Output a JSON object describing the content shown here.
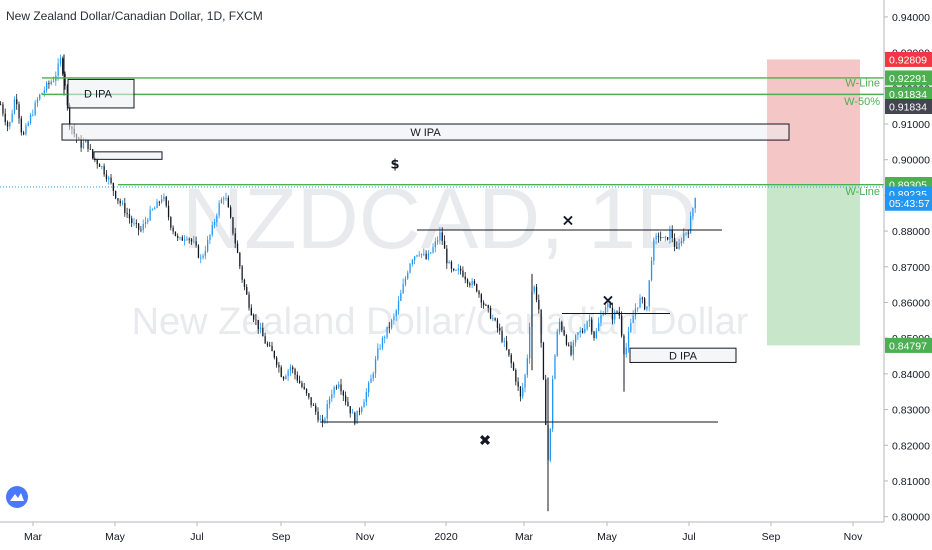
{
  "header": {
    "title": "New Zealand Dollar/Canadian Dollar, 1D, FXCM"
  },
  "watermark": {
    "symbol": "NZDCAD, 1D",
    "name": "New Zealand Dollar/Canadian Dollar"
  },
  "colors": {
    "up": "#2196f3",
    "down": "#131722",
    "green_line": "#4caf50",
    "red_tag": "#f23645",
    "target_zone": "#c8e6c9",
    "stop_zone": "#f5c6c6",
    "current_tag": "#2196f3",
    "dark_tag": "#434651"
  },
  "chart_data": {
    "type": "candlestick",
    "x_ticks": [
      "Mar",
      "May",
      "Jul",
      "Sep",
      "Nov",
      "2020",
      "Mar",
      "May",
      "Jul",
      "Sep",
      "Nov"
    ],
    "y_ticks": [
      "0.94000",
      "0.93000",
      "0.92000",
      "0.91000",
      "0.90000",
      "0.89000",
      "0.88000",
      "0.87000",
      "0.86000",
      "0.85000",
      "0.84000",
      "0.83000",
      "0.82000",
      "0.81000",
      "0.80000"
    ],
    "ylim": [
      0.7985,
      0.9425
    ],
    "price_path": [
      [
        0,
        0.9155
      ],
      [
        8,
        0.9085
      ],
      [
        15,
        0.9185
      ],
      [
        22,
        0.906
      ],
      [
        30,
        0.912
      ],
      [
        38,
        0.9175
      ],
      [
        46,
        0.9205
      ],
      [
        54,
        0.923
      ],
      [
        60,
        0.928
      ],
      [
        64,
        0.9225
      ],
      [
        68,
        0.911
      ],
      [
        74,
        0.907
      ],
      [
        80,
        0.904
      ],
      [
        86,
        0.905
      ],
      [
        92,
        0.9005
      ],
      [
        100,
        0.8985
      ],
      [
        108,
        0.8945
      ],
      [
        116,
        0.8895
      ],
      [
        124,
        0.886
      ],
      [
        132,
        0.882
      ],
      [
        140,
        0.88
      ],
      [
        148,
        0.8845
      ],
      [
        156,
        0.887
      ],
      [
        162,
        0.89
      ],
      [
        170,
        0.882
      ],
      [
        178,
        0.877
      ],
      [
        186,
        0.879
      ],
      [
        194,
        0.876
      ],
      [
        200,
        0.872
      ],
      [
        206,
        0.876
      ],
      [
        212,
        0.881
      ],
      [
        218,
        0.887
      ],
      [
        224,
        0.8905
      ],
      [
        230,
        0.883
      ],
      [
        236,
        0.875
      ],
      [
        242,
        0.866
      ],
      [
        250,
        0.858
      ],
      [
        258,
        0.853
      ],
      [
        266,
        0.848
      ],
      [
        274,
        0.845
      ],
      [
        282,
        0.839
      ],
      [
        290,
        0.842
      ],
      [
        298,
        0.838
      ],
      [
        306,
        0.834
      ],
      [
        314,
        0.83
      ],
      [
        322,
        0.8255
      ],
      [
        330,
        0.8345
      ],
      [
        338,
        0.838
      ],
      [
        346,
        0.832
      ],
      [
        354,
        0.827
      ],
      [
        362,
        0.832
      ],
      [
        370,
        0.838
      ],
      [
        378,
        0.847
      ],
      [
        386,
        0.852
      ],
      [
        394,
        0.856
      ],
      [
        402,
        0.864
      ],
      [
        410,
        0.872
      ],
      [
        418,
        0.8745
      ],
      [
        426,
        0.872
      ],
      [
        434,
        0.876
      ],
      [
        440,
        0.8795
      ],
      [
        446,
        0.872
      ],
      [
        452,
        0.868
      ],
      [
        460,
        0.869
      ],
      [
        468,
        0.866
      ],
      [
        476,
        0.864
      ],
      [
        484,
        0.859
      ],
      [
        492,
        0.8555
      ],
      [
        500,
        0.851
      ],
      [
        508,
        0.845
      ],
      [
        514,
        0.84
      ],
      [
        520,
        0.833
      ],
      [
        526,
        0.842
      ],
      [
        532,
        0.866
      ],
      [
        538,
        0.859
      ],
      [
        544,
        0.832
      ],
      [
        548,
        0.813
      ],
      [
        552,
        0.839
      ],
      [
        558,
        0.855
      ],
      [
        564,
        0.851
      ],
      [
        570,
        0.845
      ],
      [
        576,
        0.851
      ],
      [
        582,
        0.852
      ],
      [
        588,
        0.856
      ],
      [
        594,
        0.85
      ],
      [
        600,
        0.856
      ],
      [
        606,
        0.86
      ],
      [
        612,
        0.856
      ],
      [
        618,
        0.858
      ],
      [
        624,
        0.845
      ],
      [
        628,
        0.851
      ],
      [
        634,
        0.858
      ],
      [
        640,
        0.861
      ],
      [
        646,
        0.858
      ],
      [
        652,
        0.876
      ],
      [
        658,
        0.879
      ],
      [
        664,
        0.877
      ],
      [
        670,
        0.88
      ],
      [
        676,
        0.874
      ],
      [
        682,
        0.879
      ],
      [
        688,
        0.8805
      ],
      [
        692,
        0.886
      ],
      [
        696,
        0.8924
      ]
    ],
    "levels": [
      {
        "name": "green-line-top",
        "price": 0.9229,
        "x1": 42,
        "x2": 884
      },
      {
        "name": "green-line-mid",
        "price": 0.9183,
        "x1": 42,
        "x2": 884
      },
      {
        "name": "green-line-w",
        "price": 0.893,
        "x1": 118,
        "x2": 884
      },
      {
        "name": "resistance-line",
        "price": 0.8803,
        "x1": 417,
        "x2": 722
      },
      {
        "name": "support-line",
        "price": 0.8265,
        "x1": 320,
        "x2": 718
      },
      {
        "name": "mid-line",
        "price": 0.8569,
        "x1": 562,
        "x2": 670
      }
    ],
    "zones": [
      {
        "name": "w-ipa-zone",
        "label": "W IPA",
        "x1": 62,
        "x2": 789,
        "top": 0.91,
        "bottom": 0.9055
      },
      {
        "name": "d-ipa-zone-top",
        "label": "D IPA",
        "x1": 68,
        "x2": 134,
        "top": 0.9225,
        "bottom": 0.9145
      },
      {
        "name": "small-zone",
        "label": "",
        "x1": 94,
        "x2": 162,
        "top": 0.9022,
        "bottom": 0.9001
      },
      {
        "name": "d-ipa-zone-bottom",
        "label": "D IPA",
        "x1": 630,
        "x2": 736,
        "top": 0.8472,
        "bottom": 0.8432
      }
    ],
    "annotations": [
      {
        "name": "dollar-mark",
        "text": "$",
        "x": 395,
        "price": 0.899
      },
      {
        "name": "x-mark-1",
        "text": "×",
        "x": 568,
        "price": 0.883
      },
      {
        "name": "x-mark-2",
        "text": "×",
        "x": 608,
        "price": 0.8605
      },
      {
        "name": "x-mark-3",
        "text": "✖",
        "x": 485,
        "price": 0.8213
      }
    ],
    "line_labels": [
      {
        "name": "w-line-label-top",
        "text": "W-Line",
        "price": 0.9216
      },
      {
        "name": "w-50-label",
        "text": "W-50%",
        "price": 0.9165
      },
      {
        "name": "w-line-label-bottom",
        "text": "W-Line",
        "price": 0.8913
      }
    ],
    "position": {
      "x1": 767,
      "x2": 860,
      "stop": 0.92809,
      "entry": 0.893,
      "target": 0.84797
    },
    "price_tags": [
      {
        "text": "0.92809",
        "price": 0.92809,
        "color": "red_tag"
      },
      {
        "text": "0.92291",
        "price": 0.92291,
        "color": "green_line"
      },
      {
        "text": "0.91834",
        "price": 0.91834,
        "color": "green_line"
      },
      {
        "text": "0.91834",
        "price": 0.9149,
        "color": "dark_tag"
      },
      {
        "text": "0.89305",
        "price": 0.89305,
        "color": "green_line"
      },
      {
        "text": "0.89235",
        "price": 0.8904,
        "color": "current_tag"
      },
      {
        "text": "05:43:57",
        "price": 0.8878,
        "color": "current_tag"
      },
      {
        "text": "0.84797",
        "price": 0.84797,
        "color": "green_line"
      }
    ],
    "current_price": 0.89235
  }
}
